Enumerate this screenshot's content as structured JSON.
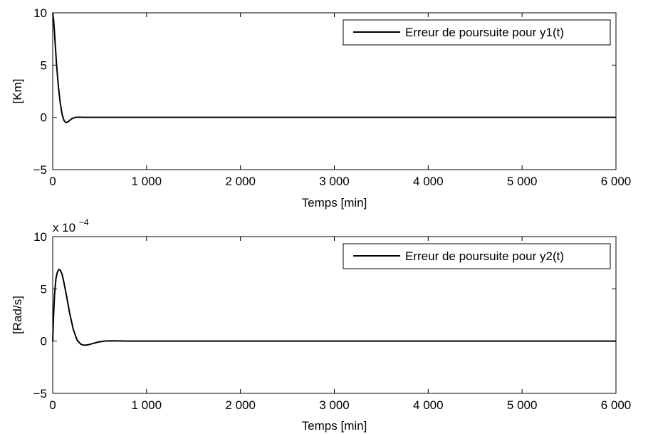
{
  "chart_data": [
    {
      "type": "line",
      "title": "",
      "xlabel": "Temps [min]",
      "ylabel": "[Km]",
      "xlim": [
        0,
        6000
      ],
      "ylim": [
        -5,
        10
      ],
      "x_ticks": [
        0,
        1000,
        2000,
        3000,
        4000,
        5000,
        6000
      ],
      "x_tick_labels": [
        "0",
        "1 000",
        "2 000",
        "3 000",
        "4 000",
        "5 000",
        "6 000"
      ],
      "y_ticks": [
        -5,
        0,
        5,
        10
      ],
      "y_tick_labels": [
        "−5",
        "0",
        "5",
        "10"
      ],
      "exponent_label": "",
      "grid": false,
      "legend_position": "top-right",
      "series": [
        {
          "name": "Erreur de poursuite pour y1(t)",
          "color": "#000000",
          "x": [
            0,
            10,
            20,
            30,
            40,
            60,
            80,
            100,
            120,
            140,
            160,
            180,
            200,
            240,
            280,
            320,
            400,
            600,
            1000,
            2000,
            3000,
            4000,
            5000,
            6000
          ],
          "y": [
            10,
            9.3,
            8.0,
            6.6,
            5.2,
            3.0,
            1.4,
            0.3,
            -0.3,
            -0.5,
            -0.45,
            -0.3,
            -0.15,
            0.0,
            0.02,
            0.0,
            0.0,
            0,
            0,
            0,
            0,
            0,
            0,
            0
          ]
        }
      ]
    },
    {
      "type": "line",
      "title": "",
      "xlabel": "Temps [min]",
      "ylabel": "[Rad/s]",
      "xlim": [
        0,
        6000
      ],
      "ylim": [
        -5,
        10
      ],
      "x_ticks": [
        0,
        1000,
        2000,
        3000,
        4000,
        5000,
        6000
      ],
      "x_tick_labels": [
        "0",
        "1 000",
        "2 000",
        "3 000",
        "4 000",
        "5 000",
        "6 000"
      ],
      "y_ticks": [
        -5,
        0,
        5,
        10
      ],
      "y_tick_labels": [
        "−5",
        "0",
        "5",
        "10"
      ],
      "exponent_label": "x 10",
      "exponent_power": "−4",
      "grid": false,
      "legend_position": "top-right",
      "series": [
        {
          "name": "Erreur de poursuite pour y2(t)",
          "color": "#000000",
          "x": [
            0,
            10,
            20,
            35,
            50,
            65,
            80,
            100,
            120,
            150,
            180,
            220,
            260,
            300,
            340,
            380,
            420,
            480,
            550,
            620,
            700,
            800,
            1000,
            2000,
            3000,
            4000,
            5000,
            6000
          ],
          "y": [
            0,
            2.6,
            4.5,
            6.0,
            6.6,
            6.85,
            6.8,
            6.4,
            5.6,
            4.2,
            2.7,
            1.1,
            0.1,
            -0.3,
            -0.4,
            -0.35,
            -0.25,
            -0.1,
            0.0,
            0.03,
            0.02,
            0.0,
            0,
            0,
            0,
            0,
            0,
            0
          ]
        }
      ]
    }
  ]
}
